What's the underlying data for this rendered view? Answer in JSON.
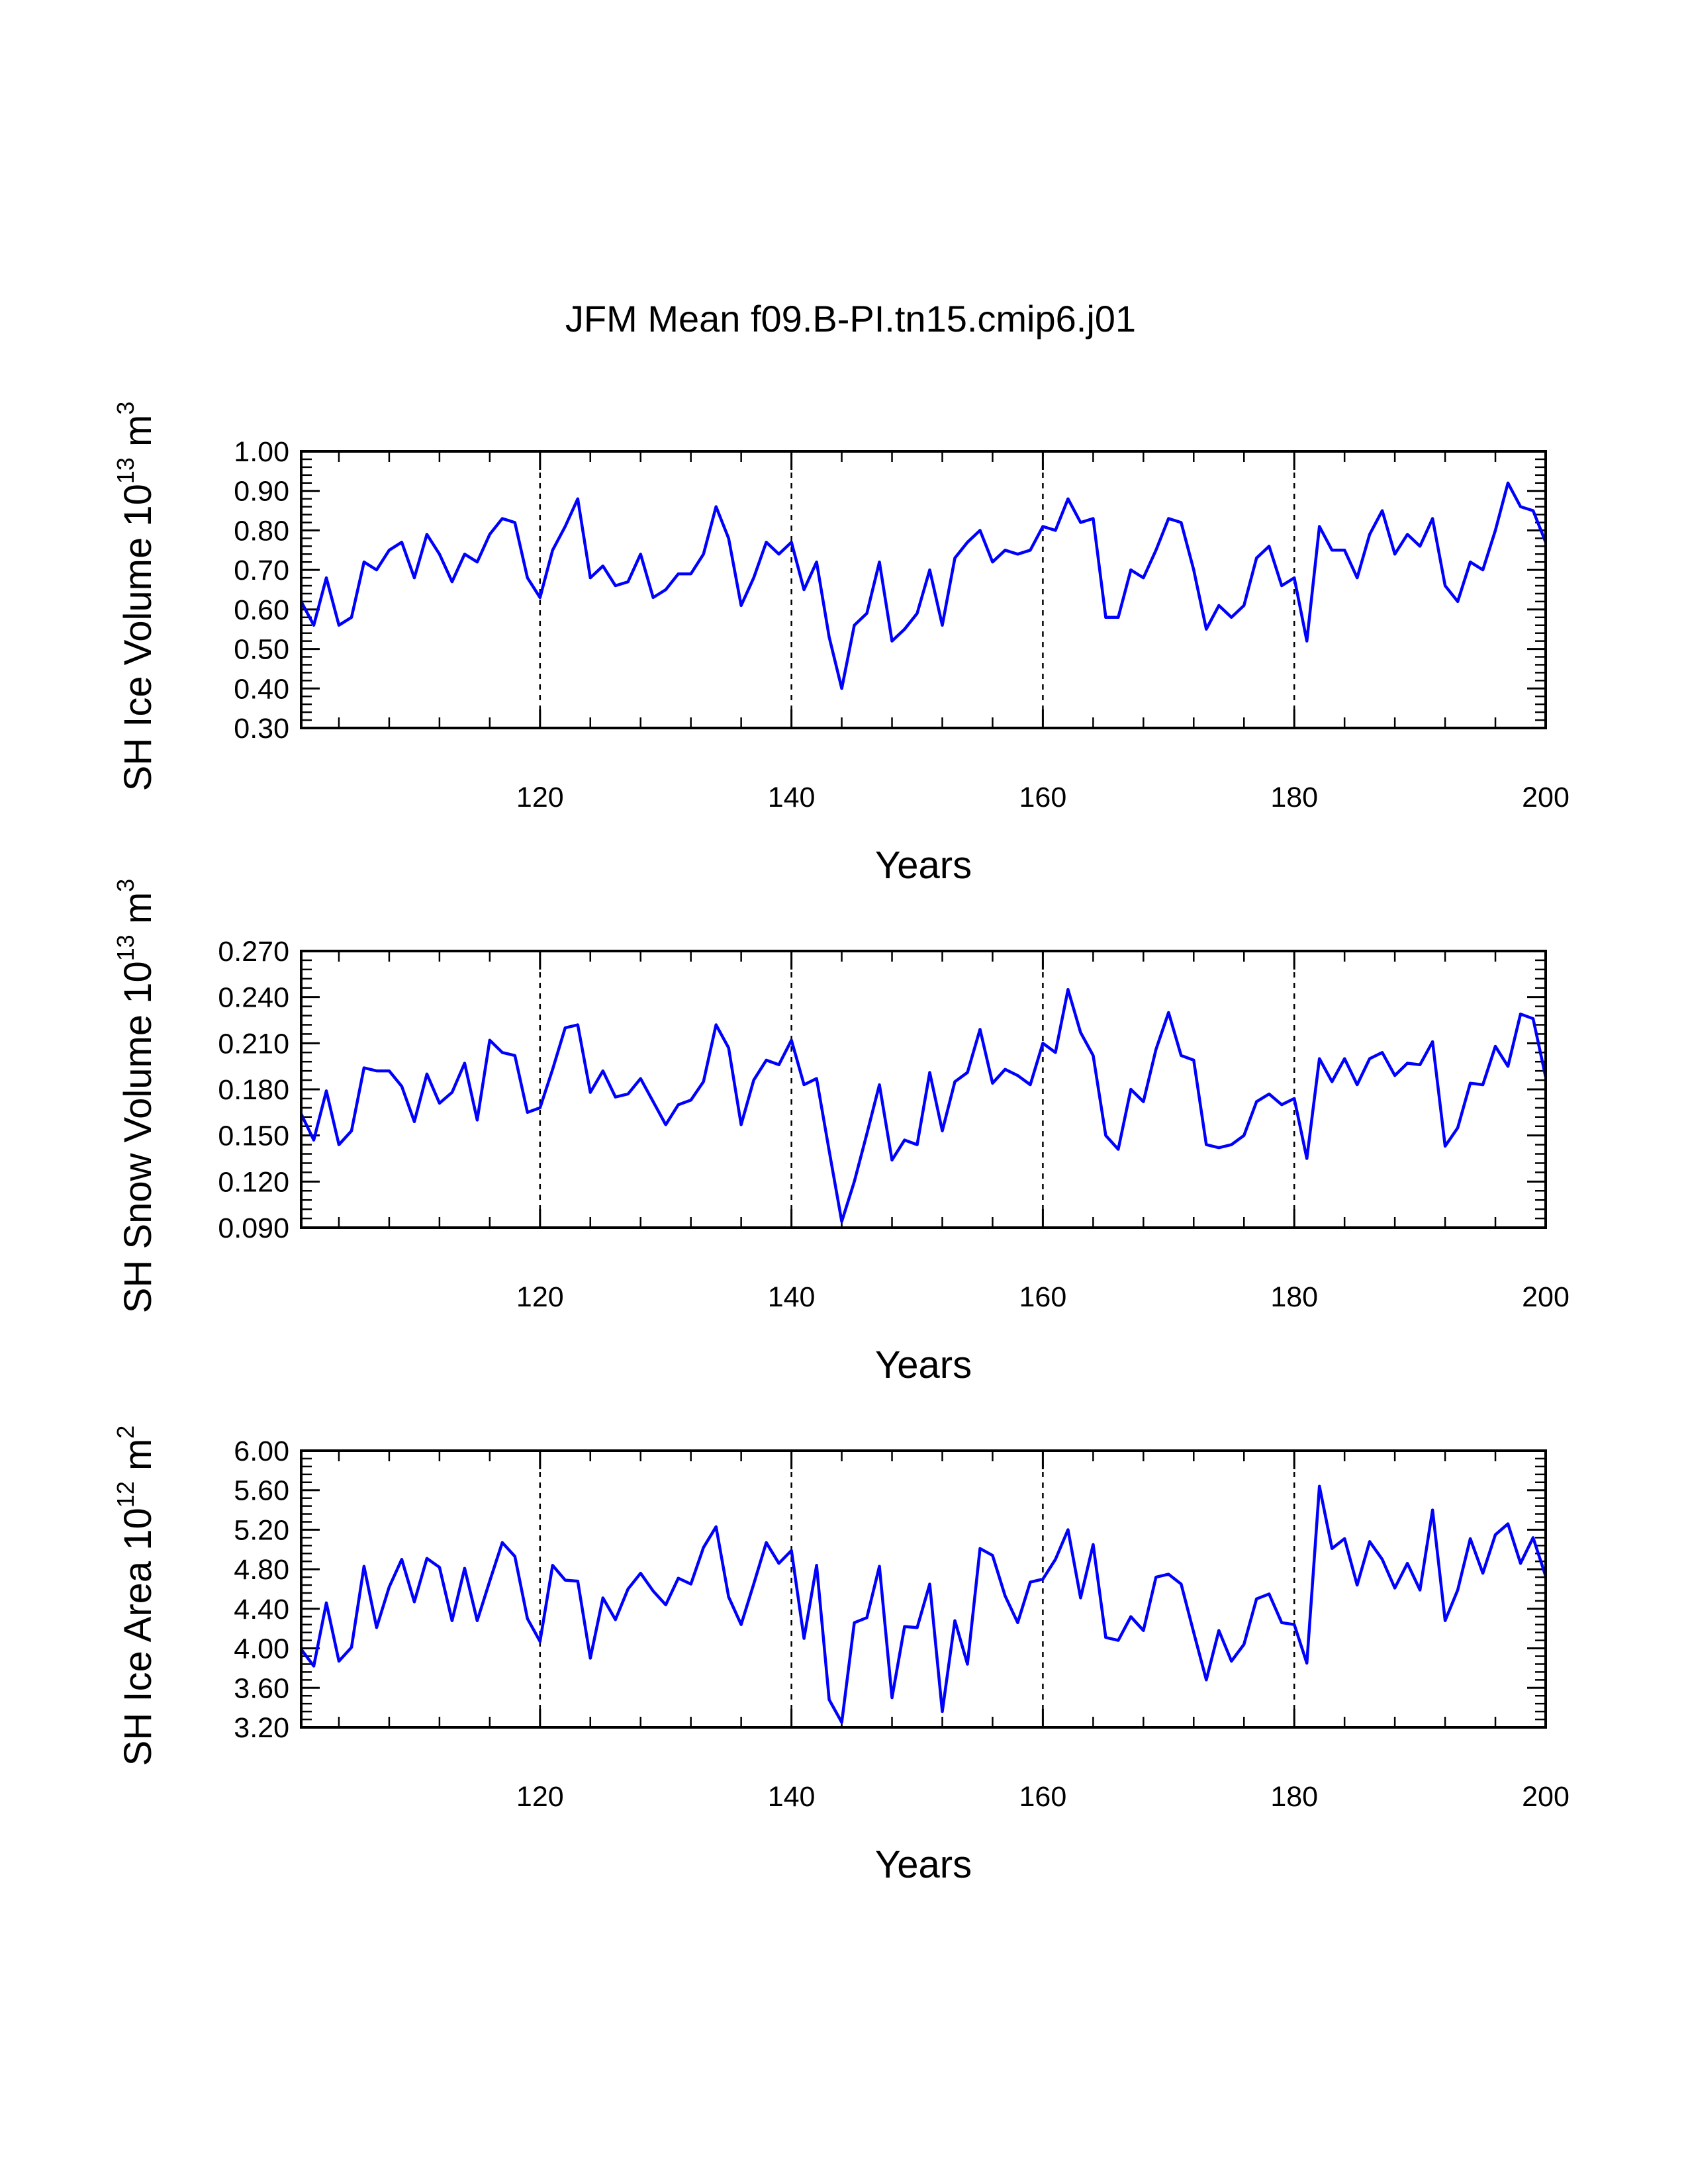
{
  "title": "JFM Mean f09.B-PI.tn15.cmip6.j01",
  "chart_data": [
    {
      "type": "line",
      "ylabel": "SH Ice Volume 10",
      "ylabel_exp": "13",
      "ylabel_unit": " m",
      "ylabel_unit_exp": "3",
      "xlabel": "Years",
      "xlim": [
        101,
        200
      ],
      "ylim": [
        0.3,
        1.0
      ],
      "xticks": [
        120,
        140,
        160,
        180,
        200
      ],
      "yticks": [
        1.0,
        0.9,
        0.8,
        0.7,
        0.6,
        0.5,
        0.4,
        0.3
      ],
      "ytick_labels": [
        "1.00",
        "0.90",
        "0.80",
        "0.70",
        "0.60",
        "0.50",
        "0.40",
        "0.30"
      ],
      "vlines": [
        120,
        140,
        160,
        180
      ],
      "grid": false,
      "line_color": "#0000ff",
      "x_start": 101,
      "values": [
        0.62,
        0.56,
        0.68,
        0.56,
        0.58,
        0.72,
        0.7,
        0.75,
        0.77,
        0.68,
        0.79,
        0.74,
        0.67,
        0.74,
        0.72,
        0.79,
        0.83,
        0.82,
        0.68,
        0.63,
        0.75,
        0.81,
        0.88,
        0.68,
        0.71,
        0.66,
        0.67,
        0.74,
        0.63,
        0.65,
        0.69,
        0.69,
        0.74,
        0.86,
        0.78,
        0.61,
        0.68,
        0.77,
        0.74,
        0.77,
        0.65,
        0.72,
        0.53,
        0.4,
        0.56,
        0.59,
        0.72,
        0.52,
        0.55,
        0.59,
        0.7,
        0.56,
        0.73,
        0.77,
        0.8,
        0.72,
        0.75,
        0.74,
        0.75,
        0.81,
        0.8,
        0.88,
        0.82,
        0.83,
        0.58,
        0.58,
        0.7,
        0.68,
        0.75,
        0.83,
        0.82,
        0.7,
        0.55,
        0.61,
        0.58,
        0.61,
        0.73,
        0.76,
        0.66,
        0.68,
        0.52,
        0.81,
        0.75,
        0.75,
        0.68,
        0.79,
        0.85,
        0.74,
        0.79,
        0.76,
        0.83,
        0.66,
        0.62,
        0.72,
        0.7,
        0.8,
        0.92,
        0.86,
        0.85,
        0.77
      ]
    },
    {
      "type": "line",
      "ylabel": "SH Snow Volume 10",
      "ylabel_exp": "13",
      "ylabel_unit": " m",
      "ylabel_unit_exp": "3",
      "xlabel": "Years",
      "xlim": [
        101,
        200
      ],
      "ylim": [
        0.09,
        0.27
      ],
      "xticks": [
        120,
        140,
        160,
        180,
        200
      ],
      "yticks": [
        0.27,
        0.24,
        0.21,
        0.18,
        0.15,
        0.12,
        0.09
      ],
      "ytick_labels": [
        "0.270",
        "0.240",
        "0.210",
        "0.180",
        "0.150",
        "0.120",
        "0.090"
      ],
      "vlines": [
        120,
        140,
        160,
        180
      ],
      "grid": false,
      "line_color": "#0000ff",
      "x_start": 101,
      "values": [
        0.164,
        0.147,
        0.179,
        0.144,
        0.153,
        0.194,
        0.192,
        0.192,
        0.182,
        0.159,
        0.19,
        0.171,
        0.178,
        0.197,
        0.16,
        0.212,
        0.204,
        0.202,
        0.165,
        0.168,
        0.193,
        0.22,
        0.222,
        0.178,
        0.192,
        0.175,
        0.177,
        0.187,
        0.172,
        0.157,
        0.17,
        0.173,
        0.185,
        0.222,
        0.207,
        0.157,
        0.186,
        0.199,
        0.196,
        0.212,
        0.183,
        0.187,
        0.14,
        0.094,
        0.12,
        0.151,
        0.183,
        0.134,
        0.147,
        0.144,
        0.191,
        0.153,
        0.185,
        0.191,
        0.219,
        0.184,
        0.193,
        0.189,
        0.183,
        0.21,
        0.204,
        0.245,
        0.217,
        0.202,
        0.15,
        0.141,
        0.18,
        0.172,
        0.206,
        0.23,
        0.202,
        0.199,
        0.144,
        0.142,
        0.144,
        0.15,
        0.172,
        0.177,
        0.17,
        0.174,
        0.135,
        0.2,
        0.185,
        0.2,
        0.183,
        0.2,
        0.204,
        0.189,
        0.197,
        0.196,
        0.211,
        0.143,
        0.155,
        0.184,
        0.183,
        0.208,
        0.195,
        0.229,
        0.226,
        0.188
      ]
    },
    {
      "type": "line",
      "ylabel": "SH Ice Area 10",
      "ylabel_exp": "12",
      "ylabel_unit": " m",
      "ylabel_unit_exp": "2",
      "xlabel": "Years",
      "xlim": [
        101,
        200
      ],
      "ylim": [
        3.2,
        6.0
      ],
      "xticks": [
        120,
        140,
        160,
        180,
        200
      ],
      "yticks": [
        6.0,
        5.6,
        5.2,
        4.8,
        4.4,
        4.0,
        3.6,
        3.2
      ],
      "ytick_labels": [
        "6.00",
        "5.60",
        "5.20",
        "4.80",
        "4.40",
        "4.00",
        "3.60",
        "3.20"
      ],
      "vlines": [
        120,
        140,
        160,
        180
      ],
      "grid": false,
      "line_color": "#0000ff",
      "x_start": 101,
      "values": [
        3.99,
        3.82,
        4.46,
        3.87,
        4.01,
        4.83,
        4.21,
        4.62,
        4.9,
        4.47,
        4.91,
        4.82,
        4.28,
        4.81,
        4.28,
        4.68,
        5.07,
        4.93,
        4.3,
        4.07,
        4.84,
        4.69,
        4.68,
        3.9,
        4.51,
        4.29,
        4.6,
        4.76,
        4.58,
        4.44,
        4.71,
        4.65,
        5.02,
        5.23,
        4.52,
        4.24,
        4.65,
        5.07,
        4.86,
        4.99,
        4.1,
        4.84,
        3.48,
        3.25,
        4.26,
        4.31,
        4.83,
        3.5,
        4.22,
        4.21,
        4.65,
        3.36,
        4.28,
        3.84,
        5.01,
        4.94,
        4.53,
        4.26,
        4.67,
        4.7,
        4.9,
        5.2,
        4.51,
        5.05,
        4.11,
        4.08,
        4.32,
        4.18,
        4.72,
        4.75,
        4.65,
        4.16,
        3.68,
        4.18,
        3.87,
        4.04,
        4.5,
        4.55,
        4.26,
        4.24,
        3.85,
        5.64,
        5.01,
        5.11,
        4.64,
        5.08,
        4.9,
        4.61,
        4.86,
        4.59,
        5.4,
        4.28,
        4.59,
        5.11,
        4.76,
        5.15,
        5.26,
        4.86,
        5.12,
        4.73
      ]
    }
  ]
}
